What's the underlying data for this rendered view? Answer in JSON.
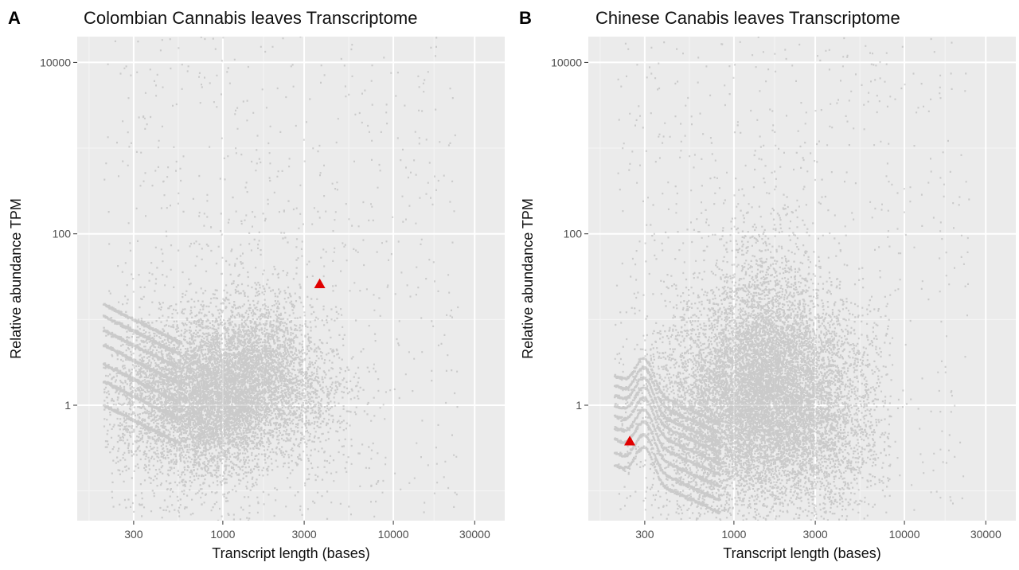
{
  "colors": {
    "panel_background": "#ebebeb",
    "major_grid": "#ffffff",
    "minor_grid": "#f5f5f5",
    "points": "#8c8c8c",
    "highlight": "#e00000",
    "tick_text": "#4d4d4d"
  },
  "chart_data": [
    {
      "panel_letter": "A",
      "type": "scatter",
      "title": "Colombian Cannabis leaves Transcriptome",
      "xlabel": "Transcript length (bases)",
      "ylabel": "Relative abundance TPM",
      "xscale": "log10",
      "yscale": "log10",
      "xlim": [
        140,
        45000
      ],
      "ylim": [
        0.045,
        20000
      ],
      "xticks": [
        300,
        1000,
        3000,
        10000,
        30000
      ],
      "xtick_labels": [
        "300",
        "1000",
        "3000",
        "10000",
        "30000"
      ],
      "yticks": [
        1,
        100,
        10000
      ],
      "ytick_labels": [
        "1",
        "100",
        "10000"
      ],
      "grid": true,
      "legend": "none",
      "point_cloud": {
        "description": "dense cloud of transcripts",
        "length_range": [
          200,
          6000
        ],
        "peak_length": 1000,
        "median_tpm": 1.2,
        "ridge_tpm_at_200": [
          1,
          1.9,
          3,
          5,
          7.5,
          11,
          15
        ]
      },
      "highlight_point": {
        "x": 3700,
        "y": 26,
        "marker": "triangle",
        "color": "#e00000"
      }
    },
    {
      "panel_letter": "B",
      "type": "scatter",
      "title": "Chinese Canabis leaves Transcriptome",
      "xlabel": "Transcript length (bases)",
      "ylabel": "Relative abundance TPM",
      "xscale": "log10",
      "yscale": "log10",
      "xlim": [
        140,
        45000
      ],
      "ylim": [
        0.045,
        20000
      ],
      "xticks": [
        300,
        1000,
        3000,
        10000,
        30000
      ],
      "xtick_labels": [
        "300",
        "1000",
        "3000",
        "10000",
        "30000"
      ],
      "yticks": [
        1,
        100,
        10000
      ],
      "ytick_labels": [
        "1",
        "100",
        "10000"
      ],
      "grid": true,
      "legend": "none",
      "point_cloud": {
        "description": "dense cloud of transcripts",
        "length_range": [
          200,
          6000
        ],
        "peak_length": 1500,
        "median_tpm": 0.8,
        "ridge_tpm_at_200": [
          0.2,
          0.28,
          0.4,
          0.55,
          0.75,
          1,
          1.3,
          1.7,
          2.2
        ]
      },
      "highlight_point": {
        "x": 245,
        "y": 0.38,
        "marker": "triangle",
        "color": "#e00000"
      }
    }
  ]
}
